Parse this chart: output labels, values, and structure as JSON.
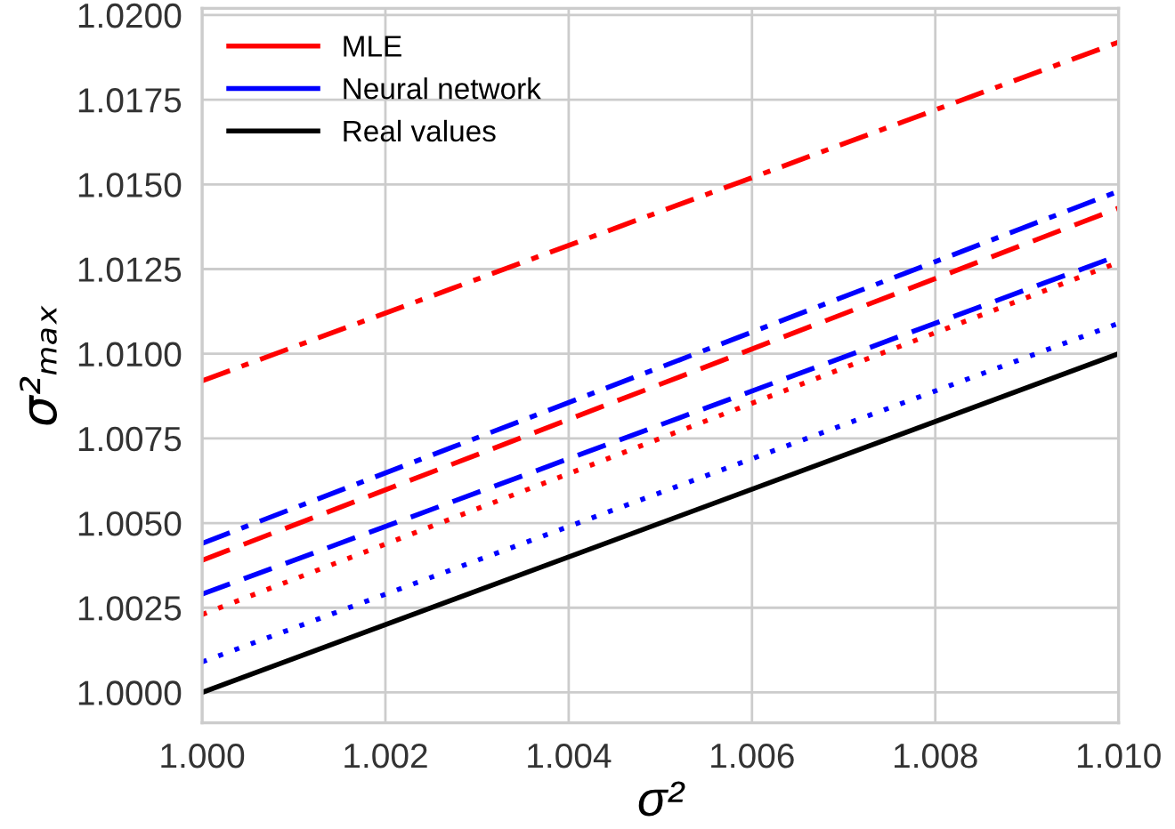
{
  "chart_data": {
    "type": "line",
    "xlabel": "σ²",
    "ylabel": "σ²ₘₐₓ",
    "x": [
      1.0,
      1.01
    ],
    "series": [
      {
        "name": "MLE",
        "color": "#ff0000",
        "line_style": "dashdot",
        "values": [
          1.0092,
          1.0192
        ]
      },
      {
        "name": "Neural network",
        "color": "#0000ff",
        "line_style": "dashdot",
        "values": [
          1.0044,
          1.0148
        ]
      },
      {
        "name": "Real values",
        "color": "#000000",
        "line_style": "solid",
        "values": [
          1.0,
          1.01
        ]
      },
      {
        "color": "#ff0000",
        "line_style": "dashed",
        "values": [
          1.0039,
          1.0143
        ]
      },
      {
        "color": "#0000ff",
        "line_style": "dashed",
        "values": [
          1.0029,
          1.0129
        ]
      },
      {
        "color": "#ff0000",
        "line_style": "dotted",
        "values": [
          1.0023,
          1.0127
        ]
      },
      {
        "color": "#0000ff",
        "line_style": "dotted",
        "values": [
          1.0009,
          1.0109
        ]
      }
    ],
    "xlim": [
      1.0,
      1.01
    ],
    "ylim": [
      0.9991,
      1.0202
    ],
    "xticks": [
      {
        "value": 1.0,
        "label": "1.000"
      },
      {
        "value": 1.002,
        "label": "1.002"
      },
      {
        "value": 1.004,
        "label": "1.004"
      },
      {
        "value": 1.006,
        "label": "1.006"
      },
      {
        "value": 1.008,
        "label": "1.008"
      },
      {
        "value": 1.01,
        "label": "1.010"
      }
    ],
    "yticks": [
      {
        "value": 1.0,
        "label": "1.0000"
      },
      {
        "value": 1.0025,
        "label": "1.0025"
      },
      {
        "value": 1.005,
        "label": "1.0050"
      },
      {
        "value": 1.0075,
        "label": "1.0075"
      },
      {
        "value": 1.01,
        "label": "1.0100"
      },
      {
        "value": 1.0125,
        "label": "1.0125"
      },
      {
        "value": 1.015,
        "label": "1.0150"
      },
      {
        "value": 1.0175,
        "label": "1.0175"
      },
      {
        "value": 1.02,
        "label": "1.0200"
      }
    ],
    "grid": true,
    "legend": "top left",
    "marker": "none"
  }
}
